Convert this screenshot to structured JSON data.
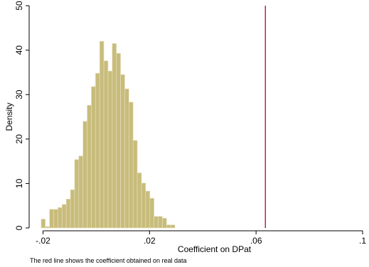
{
  "chart_data": {
    "type": "bar",
    "subtype": "histogram",
    "xlabel": "Coefficient on DPat",
    "ylabel": "Density",
    "note": "The red line shows the coefficient obtained on real data",
    "xlim": [
      -0.022,
      0.1
    ],
    "ylim": [
      0,
      50
    ],
    "x_ticks": [
      -0.02,
      0.02,
      0.06,
      0.1
    ],
    "x_tick_labels": [
      "-.02",
      ".02",
      ".06",
      ".1"
    ],
    "y_ticks": [
      0,
      10,
      20,
      30,
      40,
      50
    ],
    "y_tick_labels": [
      "0",
      "10",
      "20",
      "30",
      "40",
      "50"
    ],
    "bin_start": -0.0207,
    "bin_width": 0.00157,
    "values": [
      2,
      0.3,
      4.2,
      4.2,
      4.6,
      5.3,
      6.5,
      8.6,
      15.4,
      16.2,
      24,
      27.6,
      31.8,
      34.8,
      42,
      37.6,
      35.3,
      41.5,
      39.3,
      34.5,
      31.3,
      28.3,
      19.7,
      12.4,
      10.1,
      8.3,
      6.7,
      2.6,
      2.6,
      2.2,
      0.7,
      0.7
    ],
    "reference_line": {
      "x": 0.0635,
      "color": "#c8102e"
    },
    "bar_color": "#c8bc7c",
    "bar_edge_color": "#e8e2c2"
  }
}
